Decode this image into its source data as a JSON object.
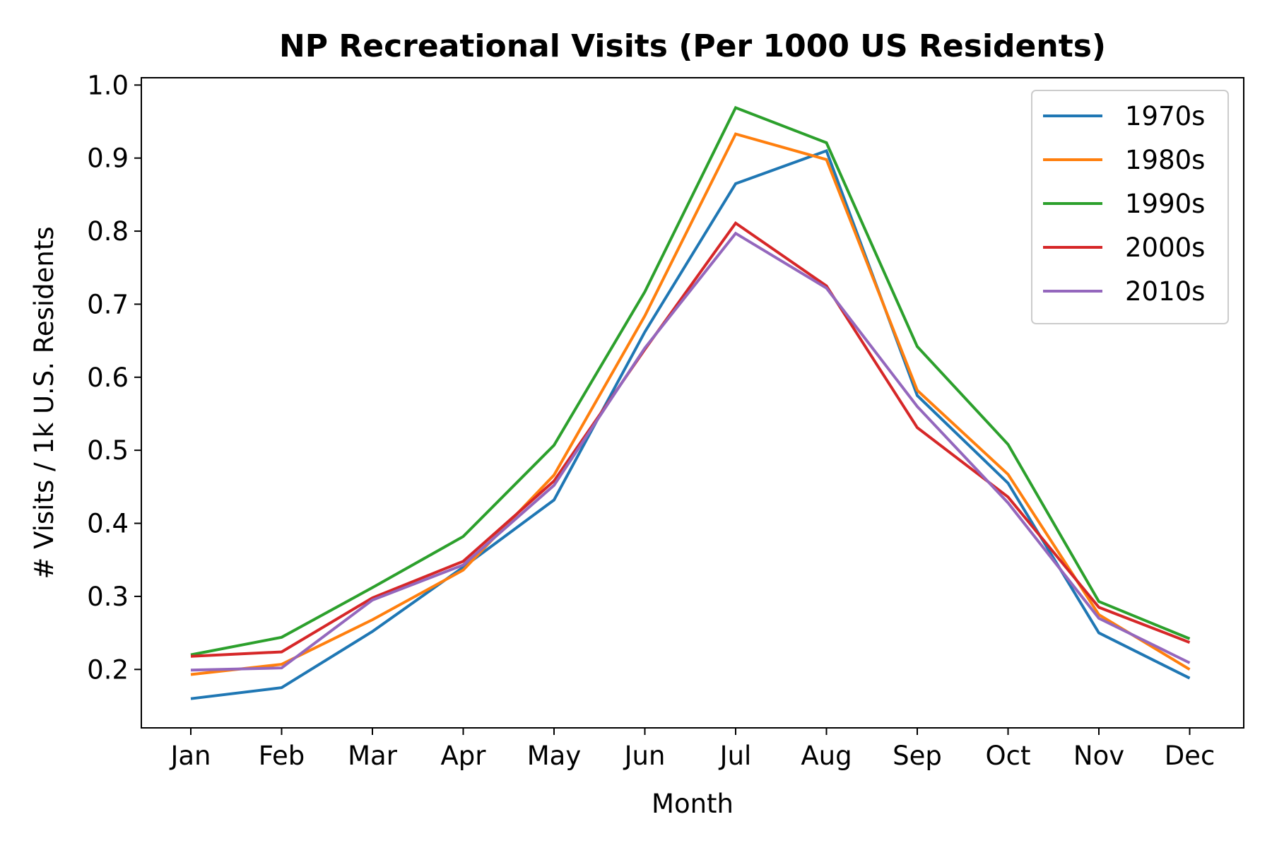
{
  "chart_data": {
    "type": "line",
    "title": "NP Recreational Visits (Per 1000 US Residents)",
    "xlabel": "Month",
    "ylabel": "# Visits / 1k U.S. Residents",
    "categories": [
      "Jan",
      "Feb",
      "Mar",
      "Apr",
      "May",
      "Jun",
      "Jul",
      "Aug",
      "Sep",
      "Oct",
      "Nov",
      "Dec"
    ],
    "ylim": [
      0.12,
      1.01
    ],
    "yticks": [
      "0.2",
      "0.3",
      "0.4",
      "0.5",
      "0.6",
      "0.7",
      "0.8",
      "0.9",
      "1.0"
    ],
    "grid": false,
    "legend_position": "top-right",
    "series": [
      {
        "name": "1970s",
        "color": "#1f77b4",
        "values": [
          0.16,
          0.175,
          0.252,
          0.34,
          0.432,
          0.662,
          0.865,
          0.91,
          0.575,
          0.455,
          0.25,
          0.188
        ]
      },
      {
        "name": "1980s",
        "color": "#ff7f0e",
        "values": [
          0.193,
          0.207,
          0.268,
          0.336,
          0.466,
          0.684,
          0.933,
          0.898,
          0.582,
          0.467,
          0.275,
          0.2
        ]
      },
      {
        "name": "1990s",
        "color": "#2ca02c",
        "values": [
          0.22,
          0.244,
          0.312,
          0.382,
          0.507,
          0.717,
          0.969,
          0.921,
          0.642,
          0.508,
          0.293,
          0.242
        ]
      },
      {
        "name": "2000s",
        "color": "#d62728",
        "values": [
          0.218,
          0.224,
          0.298,
          0.348,
          0.458,
          0.638,
          0.811,
          0.725,
          0.531,
          0.436,
          0.285,
          0.237
        ]
      },
      {
        "name": "2010s",
        "color": "#9467bd",
        "values": [
          0.199,
          0.202,
          0.295,
          0.343,
          0.452,
          0.64,
          0.797,
          0.722,
          0.56,
          0.428,
          0.27,
          0.209
        ]
      }
    ]
  }
}
